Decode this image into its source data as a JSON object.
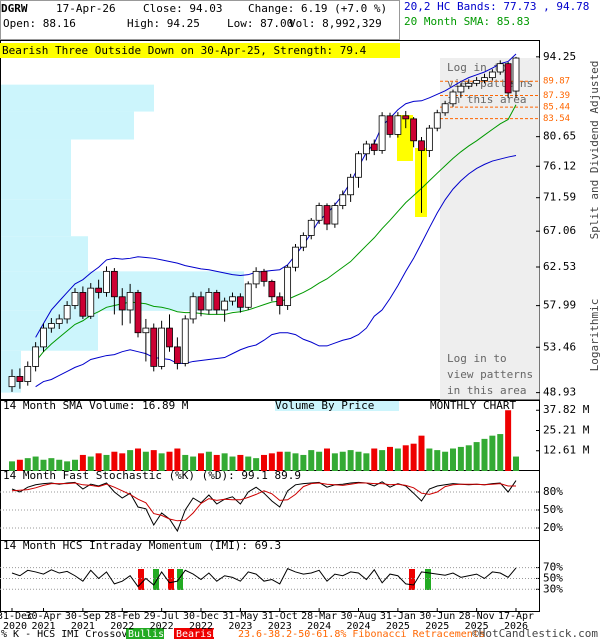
{
  "header": {
    "symbol": "DGRW",
    "date": "17-Apr-26",
    "close": "Close: 94.03",
    "change": "Change: 6.19 (+7.0 %)",
    "open": "Open: 88.16",
    "high": "High: 94.25",
    "low": "Low: 87.00",
    "volume": "Vol: 8,992,329",
    "bands": "20,2 HC Bands: 77.73 , 94.78",
    "sma": "20 Month SMA: 85.83"
  },
  "pattern": "Bearish Three Outside Down on 30-Apr-25, Strength: 79.4",
  "login_note": [
    "Log in to",
    "view patterns",
    "in this area"
  ],
  "footer": {
    "crossover": "% K - HCS IMI Crossover:",
    "bullish": "Bullish",
    "bearish": "Bearish",
    "copyright": "©HotCandlestick.com"
  },
  "chart_data": [
    {
      "type": "candlestick",
      "categories": [
        [
          "31-Dec",
          "2020"
        ],
        null,
        null,
        null,
        [
          "30-Apr",
          "2021"
        ],
        null,
        null,
        null,
        null,
        [
          "30-Sep",
          "2021"
        ],
        null,
        null,
        null,
        null,
        [
          "28-Feb",
          "2022"
        ],
        null,
        null,
        null,
        null,
        [
          "29-Jul",
          "2022"
        ],
        null,
        null,
        null,
        null,
        [
          "30-Dec",
          "2022"
        ],
        null,
        null,
        null,
        null,
        [
          "31-May",
          "2023"
        ],
        null,
        null,
        null,
        null,
        [
          "31-Oct",
          "2023"
        ],
        null,
        null,
        null,
        null,
        [
          "28-Mar",
          "2024"
        ],
        null,
        null,
        null,
        null,
        [
          "30-Aug",
          "2024"
        ],
        null,
        null,
        null,
        null,
        [
          "31-Jan",
          "2025"
        ],
        null,
        null,
        null,
        null,
        [
          "30-Jun",
          "2025"
        ],
        null,
        null,
        null,
        null,
        [
          "28-Nov",
          "2025"
        ],
        null,
        null,
        null,
        null,
        [
          "17-Apr",
          "2026"
        ]
      ],
      "open": [
        49.5,
        50.5,
        50.0,
        51.5,
        53.5,
        55.5,
        56.0,
        56.5,
        58.0,
        59.5,
        56.8,
        60.0,
        59.5,
        62.0,
        59.0,
        57.5,
        59.5,
        55.0,
        55.5,
        51.5,
        55.5,
        53.5,
        51.8,
        56.5,
        59.0,
        57.5,
        59.5,
        57.5,
        58.5,
        59.0,
        57.8,
        60.5,
        62.0,
        60.8,
        59.0,
        58.0,
        62.5,
        65.0,
        66.5,
        68.5,
        70.5,
        68.0,
        70.5,
        72.0,
        74.5,
        78.0,
        79.5,
        78.5,
        84.0,
        81.0,
        84.0,
        83.5,
        80.0,
        78.5,
        82.0,
        84.5,
        86.0,
        88.0,
        89.0,
        89.5,
        90.0,
        90.5,
        91.5,
        93.0,
        88.16
      ],
      "high": [
        51.2,
        51.3,
        52.0,
        54.0,
        56.0,
        56.6,
        57.0,
        58.5,
        60.0,
        60.2,
        60.6,
        61.0,
        62.6,
        62.4,
        60.0,
        60.5,
        59.8,
        56.5,
        56.0,
        56.3,
        57.0,
        54.5,
        56.9,
        59.5,
        59.6,
        60.0,
        59.8,
        58.9,
        59.5,
        59.4,
        60.8,
        62.5,
        62.3,
        61.0,
        59.5,
        62.8,
        65.4,
        66.9,
        68.8,
        70.9,
        70.8,
        70.9,
        72.6,
        75.0,
        78.4,
        80.0,
        80.2,
        84.6,
        84.5,
        84.6,
        84.8,
        83.8,
        80.6,
        82.5,
        85.0,
        86.5,
        88.4,
        89.5,
        90.2,
        90.6,
        91.2,
        92.0,
        93.6,
        93.3,
        94.25
      ],
      "low": [
        49.0,
        49.3,
        49.6,
        51.0,
        53.0,
        55.0,
        55.4,
        56.0,
        57.6,
        56.5,
        56.5,
        58.8,
        59.0,
        57.0,
        55.8,
        56.0,
        54.5,
        52.0,
        51.0,
        51.2,
        53.0,
        51.2,
        51.5,
        56.0,
        56.8,
        57.0,
        57.0,
        56.2,
        58.0,
        57.2,
        57.5,
        60.0,
        60.2,
        58.5,
        57.0,
        57.5,
        62.0,
        64.5,
        66.0,
        68.0,
        67.2,
        67.5,
        70.0,
        71.0,
        73.0,
        77.0,
        77.8,
        78.0,
        80.5,
        80.5,
        82.0,
        79.0,
        69.5,
        77.5,
        81.5,
        84.0,
        85.5,
        87.0,
        88.5,
        89.0,
        89.5,
        90.0,
        91.0,
        87.0,
        87.0
      ],
      "close": [
        50.5,
        50.0,
        51.5,
        53.5,
        55.5,
        56.0,
        56.5,
        58.0,
        59.5,
        56.8,
        60.0,
        59.5,
        62.0,
        59.0,
        57.5,
        59.5,
        55.0,
        55.5,
        51.5,
        55.5,
        53.5,
        51.8,
        56.5,
        59.0,
        57.5,
        59.5,
        57.5,
        58.5,
        59.0,
        57.8,
        60.5,
        62.0,
        60.8,
        59.0,
        58.0,
        62.5,
        65.0,
        66.5,
        68.5,
        70.5,
        68.0,
        70.5,
        72.0,
        74.5,
        78.0,
        79.5,
        78.5,
        84.0,
        81.0,
        84.0,
        83.5,
        80.0,
        78.5,
        82.0,
        84.5,
        86.0,
        88.0,
        89.0,
        89.5,
        90.0,
        90.5,
        91.5,
        93.0,
        87.84,
        94.03
      ],
      "up_color": "#ffffff",
      "down_color": "#cc0033",
      "log_scale": true,
      "ylim": [
        48.23,
        97.4
      ],
      "yticks": [
        48.93,
        53.46,
        57.99,
        62.53,
        67.06,
        71.59,
        76.12,
        80.65,
        94.25
      ],
      "y_label_top": "Split and Dividend Adjusted",
      "y_label_bottom": "Logarithmic",
      "fib_levels": [
        89.87,
        87.39,
        85.44,
        83.54
      ],
      "fib_color": "#ff6600",
      "fib_legend": "23.6-38.2-50-61.8% Fibonacci Retracements",
      "sma": {
        "color": "#009900",
        "values": [
          null,
          null,
          null,
          52.0,
          53.0,
          53.8,
          54.5,
          55.2,
          55.9,
          56.3,
          56.9,
          57.3,
          57.8,
          58.0,
          58.2,
          58.4,
          58.3,
          58.2,
          57.9,
          57.8,
          57.6,
          57.3,
          57.2,
          57.2,
          57.1,
          57.0,
          57.0,
          57.0,
          57.2,
          57.3,
          57.5,
          57.8,
          58.1,
          58.4,
          58.5,
          58.7,
          59.1,
          59.5,
          60.0,
          60.6,
          61.1,
          61.8,
          62.5,
          63.2,
          64.2,
          65.2,
          66.2,
          67.4,
          68.5,
          69.7,
          70.9,
          71.9,
          72.9,
          74.0,
          75.1,
          76.2,
          77.3,
          78.3,
          79.2,
          80.0,
          80.9,
          81.8,
          82.7,
          83.4,
          85.83
        ]
      },
      "bands": {
        "color": "#0000cc",
        "upper": [
          null,
          null,
          null,
          54.5,
          56.0,
          57.5,
          58.5,
          59.5,
          60.5,
          61.0,
          61.8,
          62.5,
          63.4,
          63.6,
          63.5,
          63.6,
          63.8,
          63.7,
          63.6,
          63.4,
          63.2,
          63.0,
          62.7,
          62.5,
          62.3,
          62.2,
          62.0,
          61.8,
          61.6,
          61.5,
          61.6,
          61.9,
          62.0,
          62.1,
          62.2,
          62.8,
          64.0,
          65.3,
          66.8,
          68.5,
          69.4,
          70.6,
          72.0,
          73.8,
          76.0,
          78.2,
          79.6,
          82.4,
          83.6,
          85.0,
          86.0,
          86.4,
          86.5,
          87.0,
          87.6,
          88.2,
          89.0,
          89.8,
          90.5,
          91.0,
          91.5,
          92.2,
          93.0,
          93.4,
          94.78
        ],
        "lower": [
          null,
          null,
          null,
          49.5,
          50.0,
          50.2,
          50.6,
          51.0,
          51.4,
          51.7,
          52.2,
          52.4,
          52.6,
          52.7,
          53.0,
          53.2,
          53.0,
          52.8,
          52.4,
          52.3,
          52.2,
          51.8,
          51.8,
          52.0,
          52.1,
          52.2,
          52.3,
          52.4,
          52.8,
          53.2,
          53.5,
          53.7,
          54.2,
          54.8,
          55.0,
          55.0,
          54.8,
          54.3,
          54.0,
          53.6,
          53.6,
          53.9,
          54.2,
          54.4,
          54.8,
          55.5,
          56.8,
          57.5,
          58.8,
          60.3,
          62.0,
          63.6,
          65.5,
          67.5,
          69.5,
          71.3,
          72.8,
          74.0,
          75.0,
          75.8,
          76.4,
          76.9,
          77.2,
          77.5,
          77.73
        ]
      },
      "volume_by_price": {
        "title": "Volume By Price",
        "color": "#ccf5fc",
        "bins": [
          48.93,
          53.1,
          57.4,
          62.0,
          66.4,
          71.3,
          80.2,
          84.7,
          89.27
        ],
        "values": [
          20,
          97,
          243,
          87,
          70,
          70,
          133,
          153
        ]
      }
    },
    {
      "type": "bar",
      "title": "14 Month SMA Volume: 16.89 M",
      "note": "MONTHLY CHART",
      "values": [
        6,
        7,
        8,
        9,
        7,
        8,
        7,
        6,
        7,
        10,
        9,
        11,
        10,
        12,
        11,
        13,
        14,
        12,
        13,
        11,
        12,
        14,
        10,
        9,
        11,
        12,
        10,
        11,
        9,
        10,
        9,
        8,
        10,
        11,
        12,
        12,
        11,
        10,
        13,
        12,
        14,
        11,
        12,
        13,
        12,
        11,
        14,
        13,
        15,
        14,
        16,
        17,
        22,
        14,
        13,
        12,
        14,
        15,
        16,
        18,
        20,
        22,
        23,
        37.82,
        8.99
      ],
      "up_color": "#33aa33",
      "down_color": "#ee0000",
      "ylim": [
        0,
        44.2
      ],
      "yticks": [
        {
          "value": 12.61,
          "label": "12.61 M"
        },
        {
          "value": 25.21,
          "label": "25.21 M"
        },
        {
          "value": 37.82,
          "label": "37.82 M"
        }
      ]
    },
    {
      "type": "line",
      "title": "14 Month Fast Stochastic (%K) (%D): 99.1  89.9",
      "series": [
        {
          "color": "#000000",
          "values": [
            85,
            80,
            88,
            92,
            94,
            95,
            93,
            95,
            96,
            85,
            93,
            90,
            95,
            80,
            70,
            78,
            55,
            52,
            25,
            45,
            35,
            15,
            50,
            70,
            62,
            75,
            60,
            68,
            72,
            60,
            80,
            88,
            78,
            65,
            55,
            82,
            92,
            94,
            95,
            96,
            88,
            92,
            93,
            95,
            96,
            95,
            90,
            97,
            88,
            94,
            90,
            78,
            65,
            85,
            90,
            92,
            94,
            93,
            92,
            93,
            92,
            94,
            95,
            80,
            99.1
          ]
        },
        {
          "color": "#cc0000",
          "values": [
            82,
            83,
            84,
            87,
            91,
            94,
            94,
            94,
            95,
            92,
            91,
            89,
            93,
            88,
            82,
            76,
            68,
            62,
            44,
            41,
            35,
            32,
            33,
            45,
            61,
            69,
            66,
            68,
            67,
            67,
            71,
            76,
            82,
            77,
            66,
            67,
            76,
            89,
            94,
            95,
            93,
            92,
            91,
            93,
            95,
            95,
            94,
            94,
            92,
            93,
            91,
            87,
            78,
            76,
            80,
            89,
            92,
            93,
            93,
            93,
            92,
            93,
            94,
            90,
            89.9
          ]
        }
      ],
      "ylim": [
        0,
        115
      ],
      "yticks": [
        {
          "value": 20,
          "label": "20%"
        },
        {
          "value": 50,
          "label": "50%"
        },
        {
          "value": 80,
          "label": "80%"
        }
      ]
    },
    {
      "type": "line",
      "title": "14 Month HCS Intraday Momentum (IMI): 69.3",
      "series": [
        {
          "color": "#000000",
          "values": [
            60,
            55,
            65,
            62,
            58,
            66,
            60,
            63,
            55,
            45,
            65,
            50,
            62,
            40,
            45,
            55,
            35,
            50,
            38,
            62,
            42,
            45,
            65,
            58,
            48,
            60,
            45,
            55,
            52,
            45,
            62,
            58,
            45,
            48,
            40,
            68,
            62,
            58,
            60,
            65,
            45,
            58,
            55,
            62,
            60,
            48,
            66,
            42,
            58,
            55,
            40,
            38,
            62,
            60,
            58,
            56,
            60,
            52,
            55,
            58,
            50,
            62,
            60,
            52,
            69.3
          ]
        }
      ],
      "ylim": [
        -11.8,
        119
      ],
      "yticks": [
        {
          "value": 30,
          "label": "30%"
        },
        {
          "value": 50,
          "label": "50%"
        },
        {
          "value": 70,
          "label": "70%"
        }
      ]
    }
  ]
}
